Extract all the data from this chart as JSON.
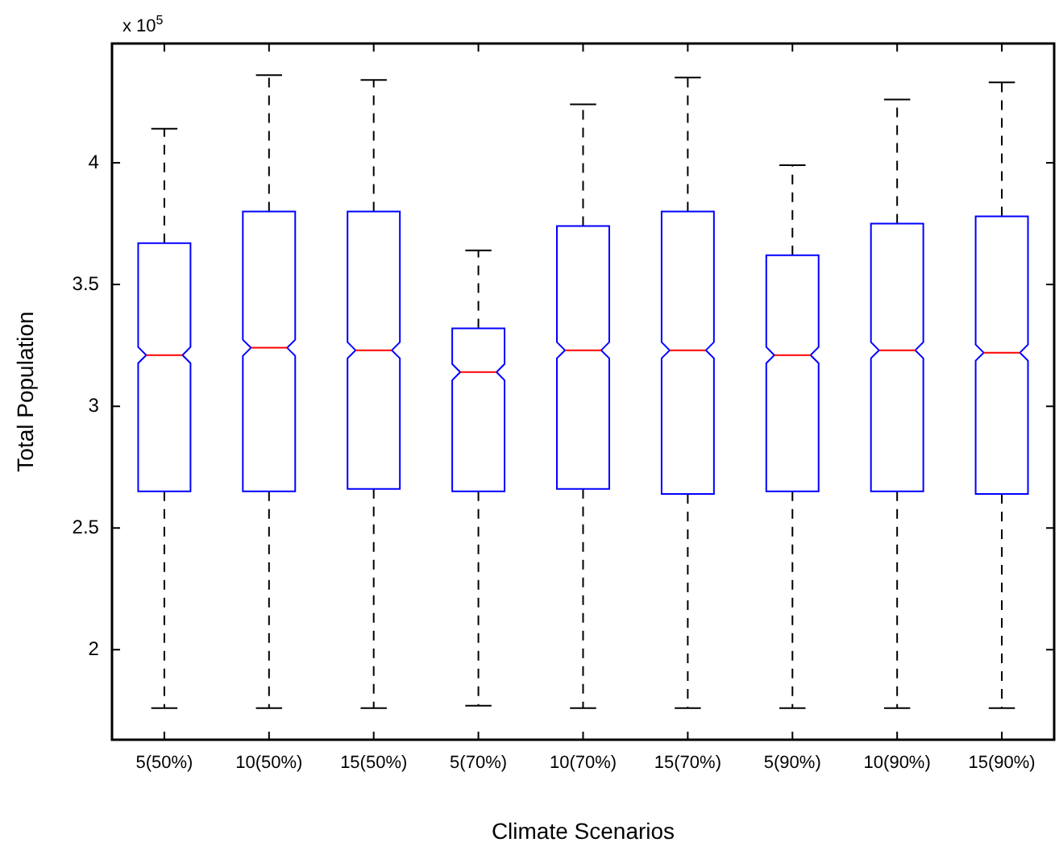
{
  "chart_data": {
    "type": "box",
    "xlabel": "Climate Scenarios",
    "ylabel": "Total Population",
    "annotations": [
      "x 10$^{5}$"
    ],
    "categories": [
      "5(50%)",
      "10(50%)",
      "15(50%)",
      "5(70%)",
      "10(70%)",
      "15(70%)",
      "5(90%)",
      "10(90%)",
      "15(90%)"
    ],
    "series": [
      {
        "color": "#0000ff",
        "boxes": [
          {
            "low": 1.76,
            "q1": 2.65,
            "median": 3.21,
            "q3": 3.67,
            "high": 4.14
          },
          {
            "low": 1.76,
            "q1": 2.65,
            "median": 3.24,
            "q3": 3.8,
            "high": 4.36
          },
          {
            "low": 1.76,
            "q1": 2.66,
            "median": 3.23,
            "q3": 3.8,
            "high": 4.34
          },
          {
            "low": 1.77,
            "q1": 2.65,
            "median": 3.14,
            "q3": 3.32,
            "high": 3.64
          },
          {
            "low": 1.76,
            "q1": 2.66,
            "median": 3.23,
            "q3": 3.74,
            "high": 4.24
          },
          {
            "low": 1.76,
            "q1": 2.64,
            "median": 3.23,
            "q3": 3.8,
            "high": 4.35
          },
          {
            "low": 1.76,
            "q1": 2.65,
            "median": 3.21,
            "q3": 3.62,
            "high": 3.99
          },
          {
            "low": 1.76,
            "q1": 2.65,
            "median": 3.23,
            "q3": 3.75,
            "high": 4.26
          },
          {
            "low": 1.76,
            "q1": 2.64,
            "median": 3.22,
            "q3": 3.78,
            "high": 4.33
          }
        ]
      }
    ],
    "ylim": [
      1.63,
      4.49
    ],
    "yticks": [
      2,
      2.5,
      3,
      3.5,
      4
    ],
    "grid": false,
    "legend": false,
    "line_style": "dashed"
  }
}
